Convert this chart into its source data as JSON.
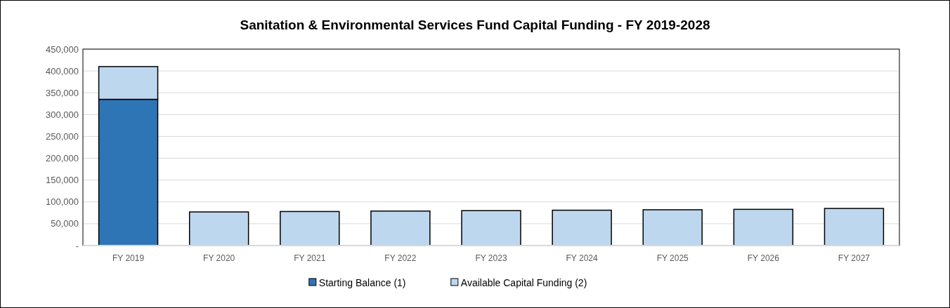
{
  "chart_data": {
    "type": "bar",
    "title": "Sanitation & Environmental Services Fund Capital Funding - FY 2019-2028",
    "categories": [
      "FY 2019",
      "FY 2020",
      "FY 2021",
      "FY 2022",
      "FY 2023",
      "FY 2024",
      "FY 2025",
      "FY 2026",
      "FY 2027"
    ],
    "stacked": true,
    "series": [
      {
        "name": "Starting Balance (1)",
        "color": "#2e75b6",
        "values": [
          335000,
          0,
          0,
          0,
          0,
          0,
          0,
          0,
          0
        ]
      },
      {
        "name": "Available Capital Funding (2)",
        "color": "#bdd7ee",
        "values": [
          75000,
          77000,
          78000,
          79000,
          80000,
          81000,
          82000,
          83000,
          85000
        ]
      }
    ],
    "ylim": [
      0,
      450000
    ],
    "yticks": [
      {
        "value": 0,
        "label": "-"
      },
      {
        "value": 50000,
        "label": "50,000"
      },
      {
        "value": 100000,
        "label": "100,000"
      },
      {
        "value": 150000,
        "label": "150,000"
      },
      {
        "value": 200000,
        "label": "200,000"
      },
      {
        "value": 250000,
        "label": "250,000"
      },
      {
        "value": 300000,
        "label": "300,000"
      },
      {
        "value": 350000,
        "label": "350,000"
      },
      {
        "value": 400000,
        "label": "400,000"
      },
      {
        "value": 450000,
        "label": "450,000"
      }
    ],
    "grid": "y",
    "legend": "bottom"
  }
}
